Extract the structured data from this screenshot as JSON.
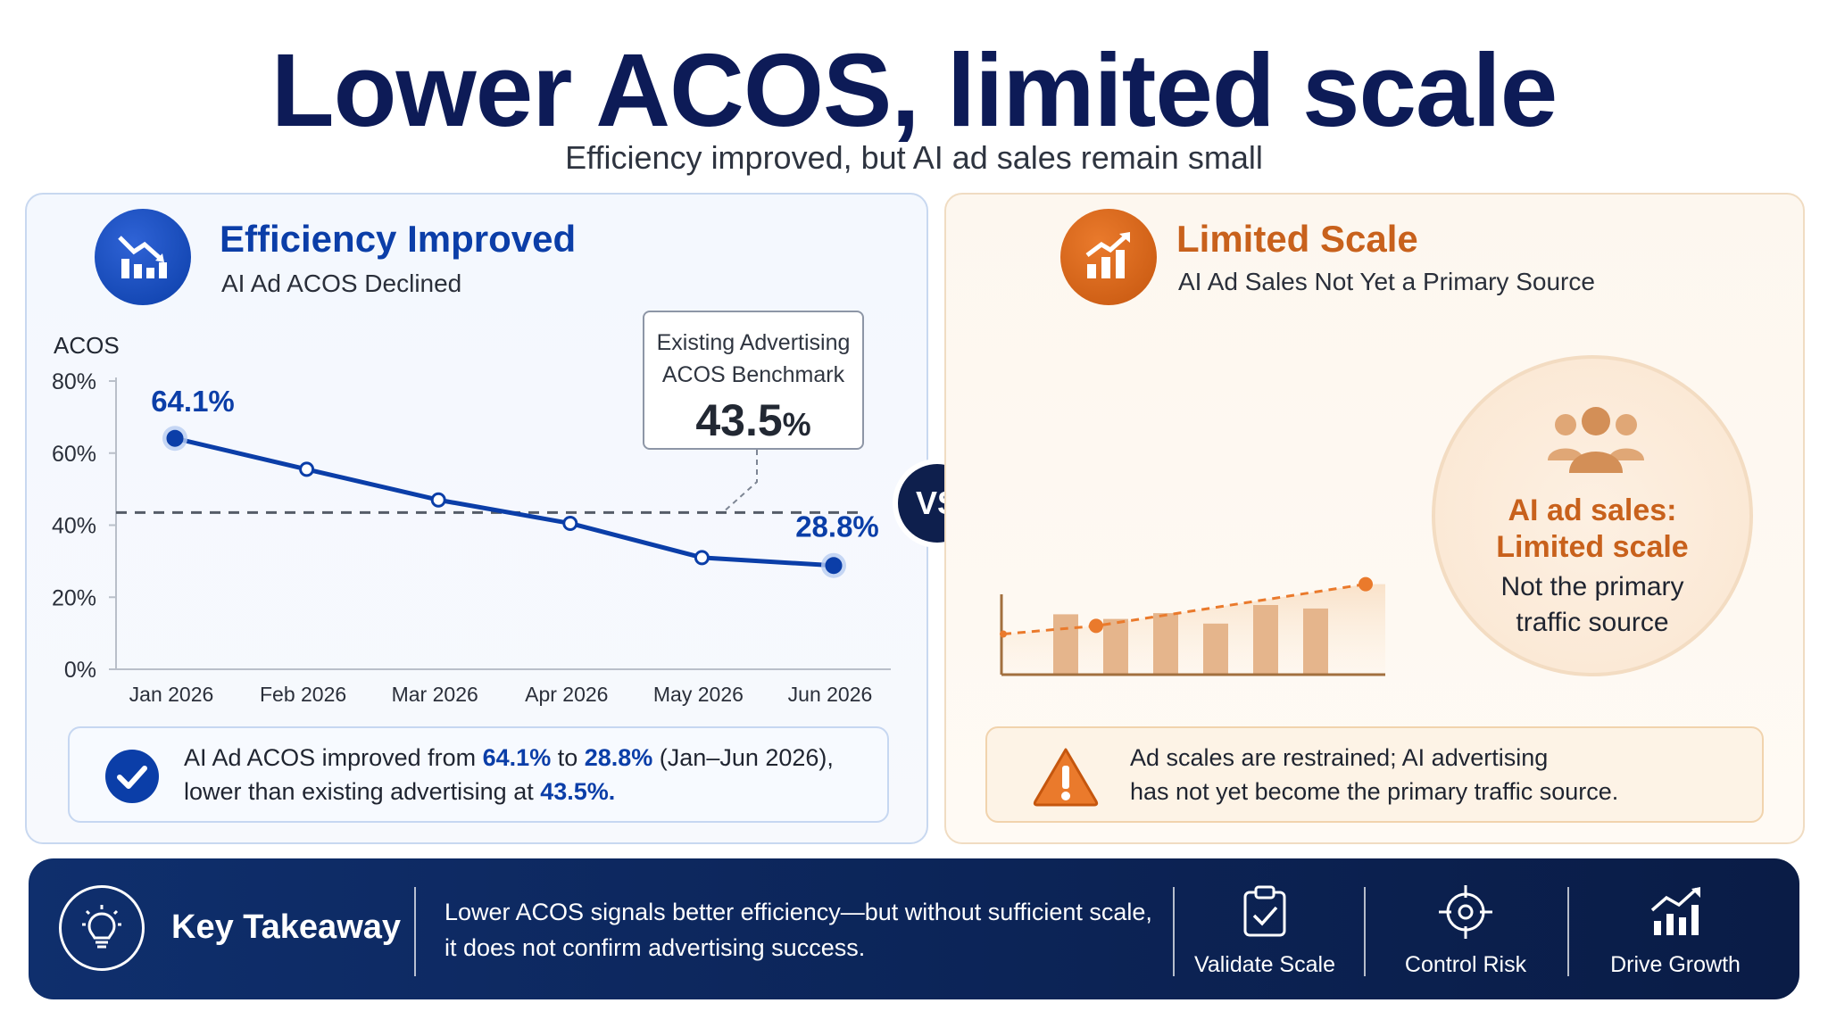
{
  "title": "Lower ACOS, limited scale",
  "subtitle": "Efficiency improved, but AI ad sales remain small",
  "left_panel": {
    "heading": "Efficiency Improved",
    "subheading": "AI Ad ACOS Declined",
    "icon": "chart-down-icon",
    "benchmark": {
      "label_line1": "Existing Advertising",
      "label_line2": "ACOS Benchmark",
      "value": "43.5",
      "unit": "%"
    },
    "callout": {
      "part1": "AI Ad ACOS improved from ",
      "v1": "64.1%",
      "part2": " to ",
      "v2": "28.8%",
      "part3": " (Jan–Jun 2026),",
      "line2_prefix": "lower than existing advertising at ",
      "v3": "43.5%."
    }
  },
  "vs_label": "VS",
  "right_panel": {
    "heading": "Limited Scale",
    "subheading": "AI Ad Sales Not Yet a Primary Source",
    "icon": "chart-up-icon",
    "circle_title_line1": "AI ad sales:",
    "circle_title_line2": "Limited scale",
    "circle_text_line1": "Not the primary",
    "circle_text_line2": "traffic source",
    "callout_line1": "Ad scales are restrained; AI advertising",
    "callout_line2": "has not yet become the primary traffic source."
  },
  "footer": {
    "label": "Key Takeaway",
    "text_line1": "Lower ACOS signals better efficiency—but without sufficient scale,",
    "text_line2": "it does not confirm advertising success.",
    "actions": [
      {
        "label": "Validate Scale",
        "icon": "clipboard-check-icon"
      },
      {
        "label": "Control Risk",
        "icon": "target-icon"
      },
      {
        "label": "Drive Growth",
        "icon": "growth-chart-icon"
      }
    ]
  },
  "colors": {
    "navy": "#0d1b57",
    "blue": "#0b3ea8",
    "orange": "#c8611c",
    "bar": "#e5b58c"
  },
  "chart_data": [
    {
      "type": "line",
      "ylabel": "ACOS",
      "categories": [
        "Jan 2026",
        "Feb 2026",
        "Mar 2026",
        "Apr 2026",
        "May 2026",
        "Jun 2026"
      ],
      "series": [
        {
          "values": [
            64.1,
            55.5,
            47.0,
            40.5,
            31.0,
            28.8
          ]
        }
      ],
      "point_labels": [
        {
          "index": 0,
          "text": "64.1%"
        },
        {
          "index": 5,
          "text": "28.8%"
        }
      ],
      "reference_line": {
        "value": 43.5
      },
      "ylim": [
        0,
        80
      ],
      "yticks": [
        0,
        20,
        40,
        60,
        80
      ],
      "ytick_labels": [
        "0%",
        "20%",
        "40%",
        "60%",
        "80%"
      ]
    },
    {
      "type": "bar",
      "bars": [
        0.52,
        0.48,
        0.53,
        0.44,
        0.6,
        0.57
      ],
      "trend": [
        0.35,
        0.42,
        0.78
      ],
      "ylim": [
        0,
        1
      ]
    }
  ]
}
